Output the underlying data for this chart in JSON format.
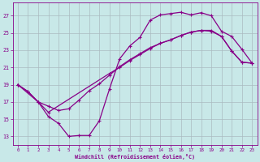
{
  "xlabel": "Windchill (Refroidissement éolien,°C)",
  "bg_color": "#c8e8e8",
  "grid_color": "#aabbc0",
  "line_color": "#880088",
  "xlim": [
    -0.5,
    23.5
  ],
  "ylim": [
    12.0,
    28.5
  ],
  "xticks": [
    0,
    1,
    2,
    3,
    4,
    5,
    6,
    7,
    8,
    9,
    10,
    11,
    12,
    13,
    14,
    15,
    16,
    17,
    18,
    19,
    20,
    21,
    22,
    23
  ],
  "yticks": [
    13,
    15,
    17,
    19,
    21,
    23,
    25,
    27
  ],
  "line1_x": [
    0,
    1,
    2,
    3,
    4,
    5,
    6,
    7,
    8,
    9,
    10,
    11,
    12,
    13,
    14,
    15,
    16,
    17,
    18,
    19,
    20,
    21,
    22,
    23
  ],
  "line1_y": [
    19.0,
    18.2,
    17.0,
    15.3,
    14.5,
    13.0,
    13.1,
    13.1,
    14.8,
    18.5,
    22.0,
    23.5,
    24.5,
    26.5,
    27.1,
    27.25,
    27.4,
    27.1,
    27.35,
    27.0,
    25.2,
    24.6,
    23.1,
    21.5
  ],
  "line2_x": [
    0,
    2,
    3,
    9,
    10,
    11,
    12,
    13,
    14,
    15,
    16,
    17,
    18,
    19,
    20,
    21,
    22,
    23
  ],
  "line2_y": [
    19.0,
    17.0,
    15.8,
    20.3,
    21.0,
    21.8,
    22.5,
    23.2,
    23.8,
    24.2,
    24.7,
    25.1,
    25.3,
    25.3,
    24.6,
    22.9,
    21.6,
    21.5
  ],
  "line3_x": [
    0,
    1,
    2,
    3,
    4,
    5,
    6,
    7,
    8,
    9,
    10,
    11,
    12,
    13,
    14,
    15,
    16,
    17,
    18,
    19,
    20,
    21,
    22,
    23
  ],
  "line3_y": [
    19.0,
    18.2,
    17.0,
    16.5,
    16.0,
    16.2,
    17.2,
    18.3,
    19.1,
    20.1,
    21.1,
    21.9,
    22.6,
    23.3,
    23.8,
    24.2,
    24.7,
    25.1,
    25.3,
    25.2,
    24.6,
    22.9,
    21.6,
    21.5
  ]
}
